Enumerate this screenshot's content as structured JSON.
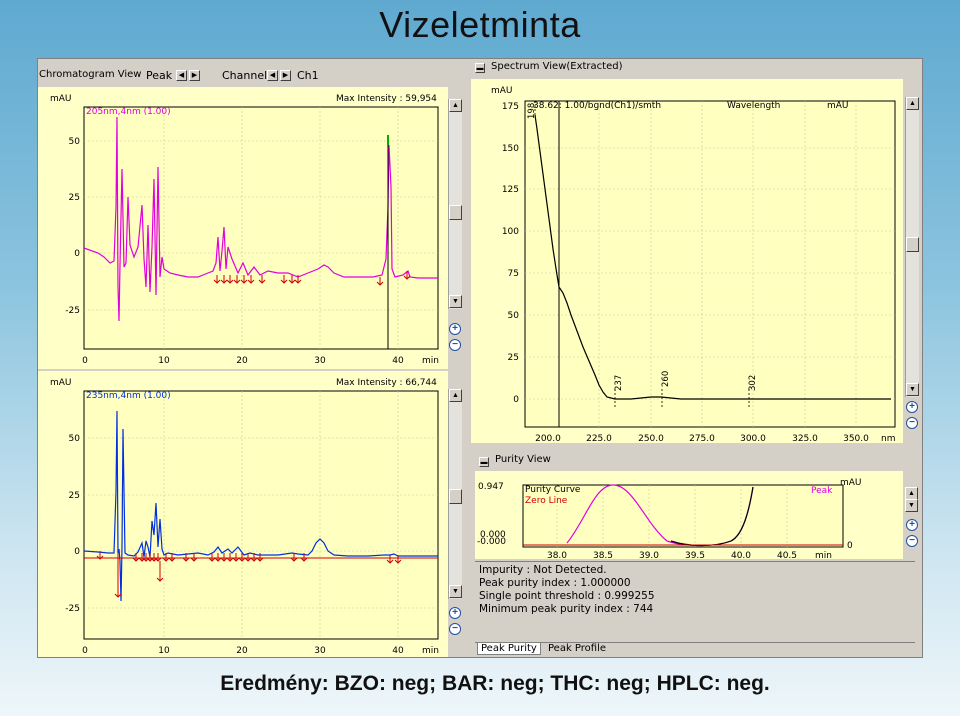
{
  "slide": {
    "title": "Vizeletminta",
    "result": "Eredmény: BZO: neg; BAR: neg; THC: neg; HPLC: neg."
  },
  "chromatogram": {
    "toolbar_title": "Chromatogram View",
    "peak_label": "Peak",
    "channel_label": "Channel",
    "channel_value": "Ch1",
    "unit_y": "mAU",
    "unit_x": "min",
    "top": {
      "legend": "205nm,4nm (1.00)",
      "max_intensity": "Max Intensity : 59,954",
      "y_ticks": [
        "50",
        "25",
        "0",
        "-25"
      ],
      "x_ticks": [
        "0",
        "10",
        "20",
        "30",
        "40"
      ],
      "line_color": "#e000e0"
    },
    "bottom": {
      "legend": "235nm,4nm (1.00)",
      "max_intensity": "Max Intensity : 66,744",
      "y_ticks": [
        "50",
        "25",
        "0",
        "-25"
      ],
      "x_ticks": [
        "0",
        "10",
        "20",
        "30",
        "40"
      ],
      "line_color": "#0030e0"
    },
    "marker_color": "#d00000"
  },
  "spectrum": {
    "title": "Spectrum View(Extracted)",
    "unit_y": "mAU",
    "header": "38.62: 1.00/bgnd(Ch1)/smth",
    "wavelength_label": "Wavelength",
    "unit_y_right": "mAU",
    "y_ticks": [
      "175",
      "150",
      "125",
      "100",
      "75",
      "50",
      "25",
      "0"
    ],
    "x_ticks": [
      "200.0",
      "225.0",
      "250.0",
      "275.0",
      "300.0",
      "325.0",
      "350.0"
    ],
    "unit_x": "nm",
    "peak_labels": [
      "198",
      "237",
      "260",
      "302"
    ]
  },
  "purity": {
    "title": "Purity View",
    "y_top": "0.947",
    "y_bottom_a": "0.000",
    "y_bottom_b": "-0.000",
    "legend_curve": "Purity Curve",
    "legend_zero": "Zero Line",
    "legend_peak": "Peak",
    "unit_right": "mAU",
    "right_zero": "0",
    "x_ticks": [
      "38.0",
      "38.5",
      "39.0",
      "39.5",
      "40.0",
      "40.5"
    ],
    "unit_x": "min",
    "info": [
      "Impurity : Not Detected.",
      "Peak purity index : 1.000000",
      "Single point threshold : 0.999255",
      "Minimum peak purity index : 744"
    ],
    "tabs": [
      "Peak Purity",
      "Peak Profile"
    ]
  }
}
